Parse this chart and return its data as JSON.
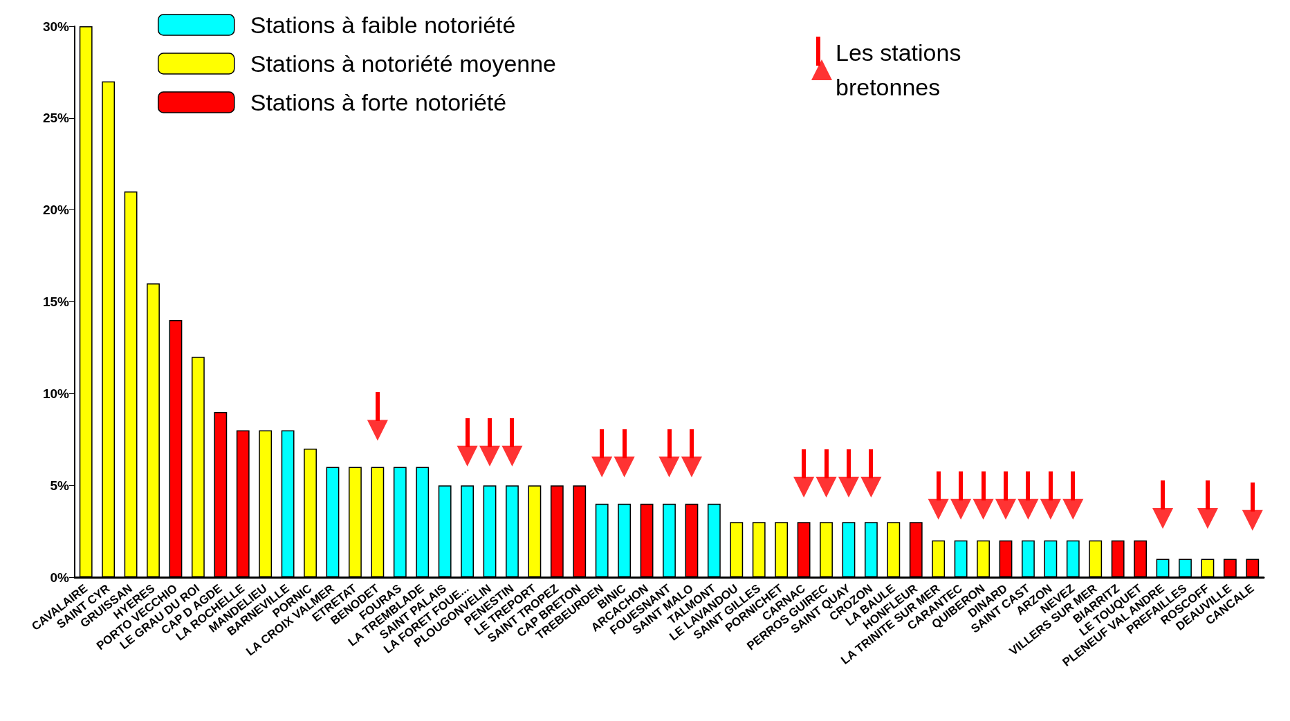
{
  "chart_data": {
    "type": "bar",
    "stacked": true,
    "legend": "top",
    "marker": "triangle",
    "categories": [
      "CAVALAIRE",
      "SAINT CYR",
      "GRUISSAN",
      "HYERES",
      "PORTO VECCHIO",
      "LE GRAU DU ROI",
      "CAP D AGDE",
      "LA ROCHELLE",
      "MANDELIEU",
      "BARNEVILLE",
      "PORNIC",
      "LA CROIX VALMER",
      "ETRETAT",
      "BENODET",
      "FOURAS",
      "LA TREMBLADE",
      "SAINT PALAIS",
      "LA FORET FOUE...",
      "PLOUGONVELIN",
      "PENESTIN",
      "LE TREPORT",
      "SAINT TROPEZ",
      "CAP BRETON",
      "TREBEURDEN",
      "BINIC",
      "ARCACHON",
      "FOUESNANT",
      "SAINT MALO",
      "TALMONT",
      "LE LAVANDOU",
      "SAINT GILLES",
      "PORNICHET",
      "CARNAC",
      "PERROS GUIREC",
      "SAINT QUAY",
      "CROZON",
      "LA BAULE",
      "HONFLEUR",
      "LA TRINITE SUR MER",
      "CARANTEC",
      "QUIBERON",
      "DINARD",
      "SAINT CAST",
      "ARZON",
      "NEVEZ",
      "VILLERS SUR MER",
      "BIARRITZ",
      "LE TOUQUET",
      "PLENEUF VAL ANDRE",
      "PREFAILLES",
      "ROSCOFF",
      "DEAUVILLE",
      "CANCALE"
    ],
    "ylim": [
      0,
      30
    ],
    "yticks": [
      {
        "value": 0,
        "label": "0%"
      },
      {
        "value": 5,
        "label": "5%"
      },
      {
        "value": 10,
        "label": "10%"
      },
      {
        "value": 15,
        "label": "15%"
      },
      {
        "value": 20,
        "label": "20%"
      },
      {
        "value": 25,
        "label": "25%"
      },
      {
        "value": 30,
        "label": "30%"
      }
    ],
    "series": [
      {
        "name": "Stations à faible notoriété",
        "color": "#00ffff",
        "values": [
          null,
          null,
          null,
          null,
          null,
          null,
          null,
          null,
          null,
          8,
          null,
          6,
          null,
          null,
          6,
          6,
          5,
          5,
          5,
          5,
          null,
          null,
          null,
          4,
          4,
          null,
          4,
          null,
          4,
          null,
          null,
          null,
          null,
          null,
          3,
          3,
          null,
          null,
          null,
          2,
          null,
          null,
          2,
          2,
          2,
          null,
          null,
          null,
          1,
          1,
          null,
          null,
          null
        ]
      },
      {
        "name": "Stations à notoriété moyenne",
        "color": "#ffff00",
        "values": [
          30,
          27,
          21,
          16,
          null,
          12,
          null,
          null,
          8,
          null,
          7,
          null,
          6,
          6,
          null,
          null,
          null,
          null,
          null,
          null,
          5,
          null,
          null,
          null,
          null,
          null,
          null,
          null,
          null,
          3,
          3,
          3,
          null,
          3,
          null,
          null,
          3,
          null,
          2,
          null,
          2,
          null,
          null,
          null,
          null,
          2,
          null,
          null,
          null,
          null,
          1,
          null,
          null
        ]
      },
      {
        "name": "Stations à forte notoriété",
        "color": "#ff0000",
        "values": [
          null,
          null,
          null,
          null,
          14,
          null,
          9,
          8,
          null,
          null,
          null,
          null,
          null,
          null,
          null,
          null,
          null,
          null,
          null,
          null,
          null,
          5,
          5,
          null,
          null,
          4,
          null,
          4,
          null,
          null,
          null,
          null,
          3,
          null,
          null,
          null,
          null,
          3,
          null,
          null,
          null,
          2,
          null,
          null,
          null,
          null,
          2,
          2,
          null,
          null,
          null,
          1,
          1
        ]
      },
      {
        "name": "Les stations bretonnes",
        "type": "scatter",
        "color": "#ff0000",
        "values": [
          null,
          null,
          null,
          null,
          null,
          null,
          null,
          null,
          null,
          null,
          null,
          null,
          null,
          8,
          null,
          null,
          null,
          6.6,
          6.6,
          6.6,
          null,
          null,
          null,
          6,
          6,
          null,
          6,
          6,
          null,
          null,
          null,
          null,
          4.9,
          4.9,
          4.9,
          4.9,
          null,
          null,
          3.7,
          3.7,
          3.7,
          3.7,
          3.7,
          3.7,
          3.7,
          null,
          null,
          null,
          3.2,
          null,
          3.2,
          null,
          3.1
        ]
      }
    ]
  }
}
